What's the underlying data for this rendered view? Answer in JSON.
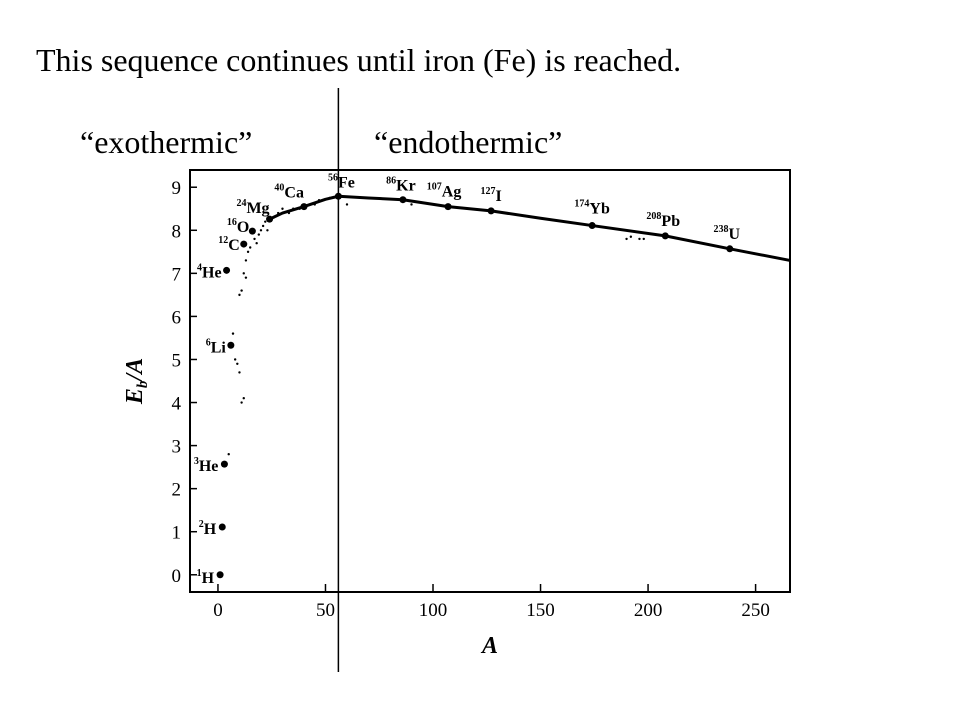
{
  "slide": {
    "headline": "This sequence continues until iron (Fe) is reached.",
    "exothermic_label": "“exothermic”",
    "endothermic_label": "“endothermic”"
  },
  "chart_data": {
    "type": "scatter",
    "title": "",
    "xlabel": "A",
    "ylabel": "E_b/A",
    "xlim": [
      -13,
      266
    ],
    "ylim": [
      -0.4,
      9.4
    ],
    "x_ticks": [
      0,
      50,
      100,
      150,
      200,
      250
    ],
    "y_ticks": [
      0,
      1,
      2,
      3,
      4,
      5,
      6,
      7,
      8,
      9
    ],
    "grid": false,
    "divider_x": 56,
    "labeled_points": [
      {
        "mass": "1",
        "symbol": "H",
        "x": 1,
        "y": 0.0
      },
      {
        "mass": "2",
        "symbol": "H",
        "x": 2,
        "y": 1.11
      },
      {
        "mass": "3",
        "symbol": "He",
        "x": 3,
        "y": 2.57
      },
      {
        "mass": "6",
        "symbol": "Li",
        "x": 6,
        "y": 5.33
      },
      {
        "mass": "4",
        "symbol": "He",
        "x": 4,
        "y": 7.07
      },
      {
        "mass": "12",
        "symbol": "C",
        "x": 12,
        "y": 7.68
      },
      {
        "mass": "16",
        "symbol": "O",
        "x": 16,
        "y": 7.98
      },
      {
        "mass": "24",
        "symbol": "Mg",
        "x": 24,
        "y": 8.26
      },
      {
        "mass": "40",
        "symbol": "Ca",
        "x": 40,
        "y": 8.55
      },
      {
        "mass": "56",
        "symbol": "Fe",
        "x": 56,
        "y": 8.79
      },
      {
        "mass": "86",
        "symbol": "Kr",
        "x": 86,
        "y": 8.71
      },
      {
        "mass": "107",
        "symbol": "Ag",
        "x": 107,
        "y": 8.55
      },
      {
        "mass": "127",
        "symbol": "I",
        "x": 127,
        "y": 8.45
      },
      {
        "mass": "174",
        "symbol": "Yb",
        "x": 174,
        "y": 8.11
      },
      {
        "mass": "208",
        "symbol": "Pb",
        "x": 208,
        "y": 7.87
      },
      {
        "mass": "238",
        "symbol": "U",
        "x": 238,
        "y": 7.57
      }
    ],
    "trend_curve": [
      [
        24,
        8.26
      ],
      [
        30,
        8.4
      ],
      [
        40,
        8.55
      ],
      [
        50,
        8.72
      ],
      [
        56,
        8.79
      ],
      [
        70,
        8.75
      ],
      [
        86,
        8.71
      ],
      [
        107,
        8.55
      ],
      [
        127,
        8.45
      ],
      [
        150,
        8.28
      ],
      [
        174,
        8.11
      ],
      [
        208,
        7.87
      ],
      [
        238,
        7.57
      ],
      [
        266,
        7.3
      ]
    ],
    "scatter_points": [
      [
        5,
        2.8
      ],
      [
        7,
        5.6
      ],
      [
        8,
        5.0
      ],
      [
        9,
        4.9
      ],
      [
        10,
        4.7
      ],
      [
        10,
        6.5
      ],
      [
        11,
        6.6
      ],
      [
        11,
        4.0
      ],
      [
        12,
        4.1
      ],
      [
        12,
        7.0
      ],
      [
        13,
        7.3
      ],
      [
        14,
        7.5
      ],
      [
        13,
        6.9
      ],
      [
        15,
        7.6
      ],
      [
        17,
        7.8
      ],
      [
        18,
        7.7
      ],
      [
        19,
        7.9
      ],
      [
        20,
        8.0
      ],
      [
        21,
        8.1
      ],
      [
        22,
        8.2
      ],
      [
        23,
        8.0
      ],
      [
        26,
        8.3
      ],
      [
        28,
        8.4
      ],
      [
        30,
        8.5
      ],
      [
        33,
        8.4
      ],
      [
        35,
        8.5
      ],
      [
        38,
        8.5
      ],
      [
        45,
        8.6
      ],
      [
        47,
        8.7
      ],
      [
        52,
        8.75
      ],
      [
        60,
        8.6
      ],
      [
        90,
        8.6
      ],
      [
        190,
        7.8
      ],
      [
        192,
        7.85
      ],
      [
        196,
        7.8
      ],
      [
        198,
        7.8
      ]
    ]
  }
}
